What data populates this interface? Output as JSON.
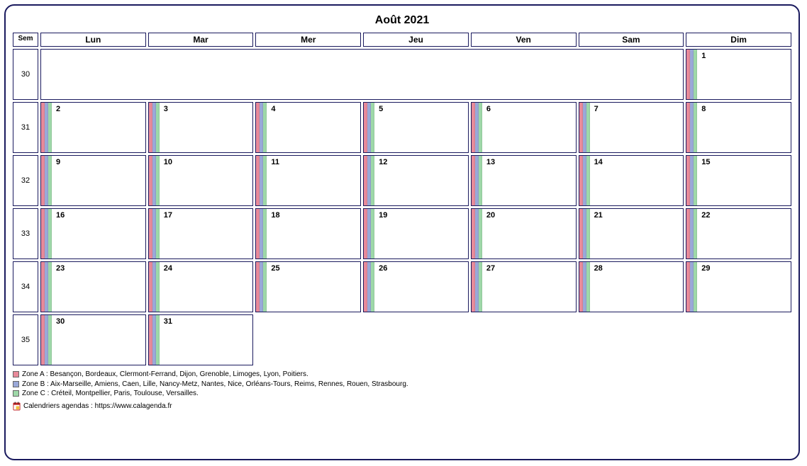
{
  "title": "Août 2021",
  "headers": {
    "sem": "Sem",
    "days": [
      "Lun",
      "Mar",
      "Mer",
      "Jeu",
      "Ven",
      "Sam",
      "Dim"
    ]
  },
  "zone_colors": {
    "a": "#e88a9a",
    "b": "#9aa8d8",
    "c": "#9ed8a8"
  },
  "border_color": "#1a1a5e",
  "weeks": [
    {
      "num": "30",
      "days": [
        null,
        null,
        null,
        null,
        null,
        null,
        "1"
      ],
      "merge_first_six": true
    },
    {
      "num": "31",
      "days": [
        "2",
        "3",
        "4",
        "5",
        "6",
        "7",
        "8"
      ]
    },
    {
      "num": "32",
      "days": [
        "9",
        "10",
        "11",
        "12",
        "13",
        "14",
        "15"
      ]
    },
    {
      "num": "33",
      "days": [
        "16",
        "17",
        "18",
        "19",
        "20",
        "21",
        "22"
      ]
    },
    {
      "num": "34",
      "days": [
        "23",
        "24",
        "25",
        "26",
        "27",
        "28",
        "29"
      ]
    },
    {
      "num": "35",
      "days": [
        "30",
        "31",
        null,
        null,
        null,
        null,
        null
      ]
    }
  ],
  "legend": {
    "a": "Zone A : Besançon, Bordeaux, Clermont-Ferrand, Dijon, Grenoble, Limoges, Lyon, Poitiers.",
    "b": "Zone B : Aix-Marseille, Amiens, Caen, Lille, Nancy-Metz, Nantes, Nice, Orléans-Tours, Reims, Rennes, Rouen, Strasbourg.",
    "c": "Zone C : Créteil, Montpellier, Paris, Toulouse, Versailles."
  },
  "footer": "Calendriers agendas : https://www.calagenda.fr"
}
